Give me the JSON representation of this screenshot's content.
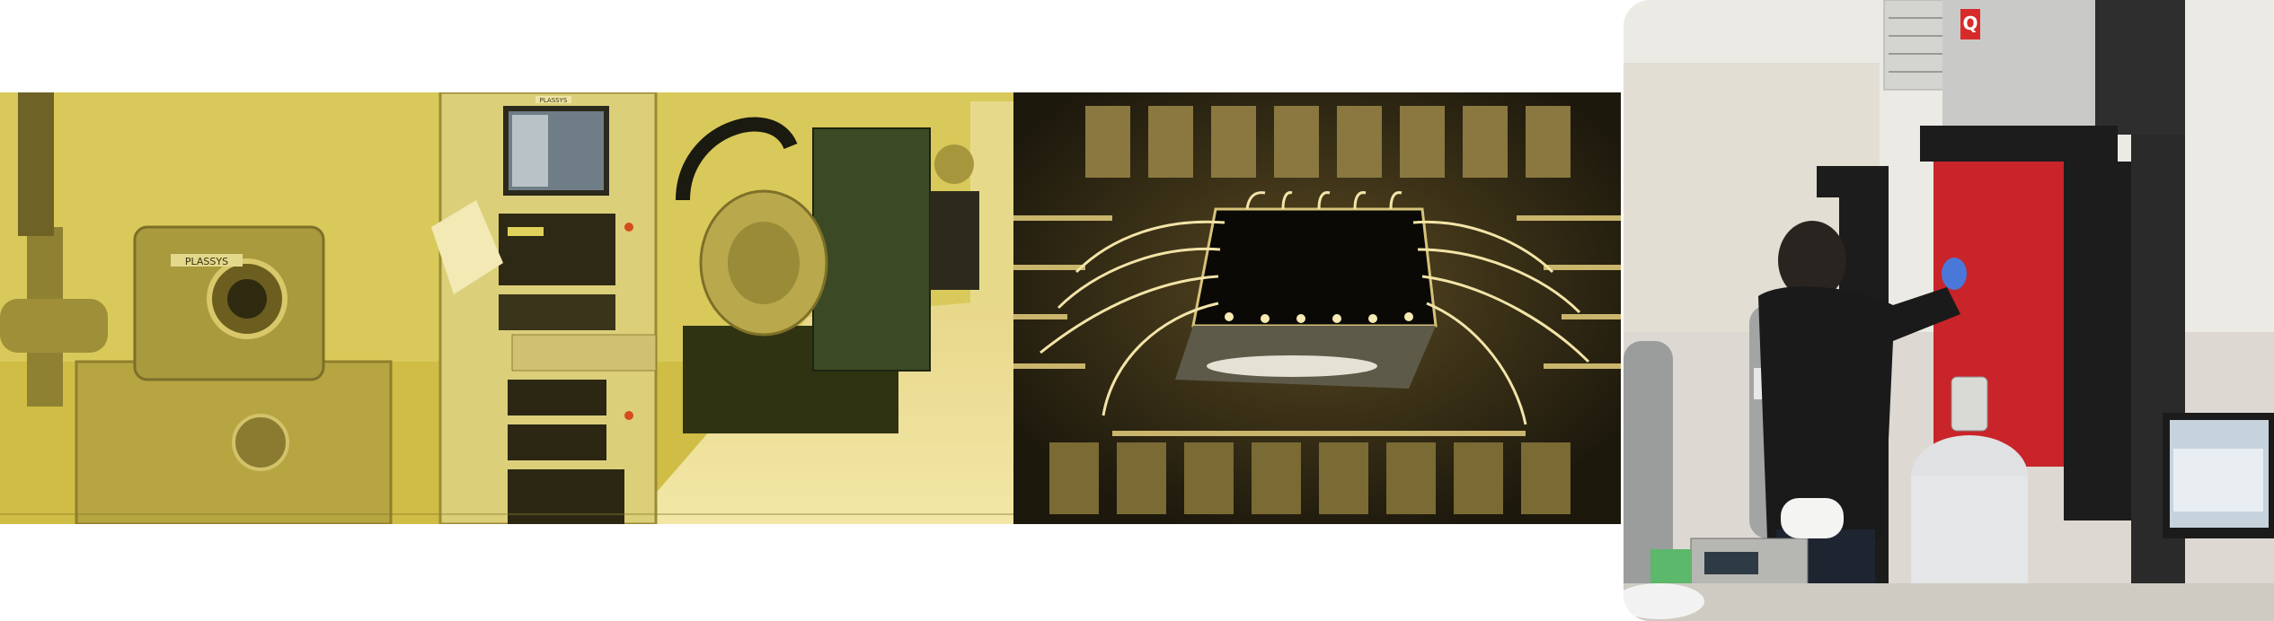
{
  "panels": {
    "cleanroom": {
      "labels": {
        "machine_brand_1": "PLASSYS",
        "machine_brand_2": "PLASSYS"
      }
    },
    "chip": {},
    "lab": {
      "labels": {
        "cryostat_logo": "Q"
      }
    }
  },
  "colors": {
    "cleanroom_tint": "#c9b63a",
    "chip_background": "#1e1a0e",
    "cryostat_red": "#c8242a",
    "cryostat_black": "#1c1c1c",
    "glove_blue": "#4a78d8"
  }
}
